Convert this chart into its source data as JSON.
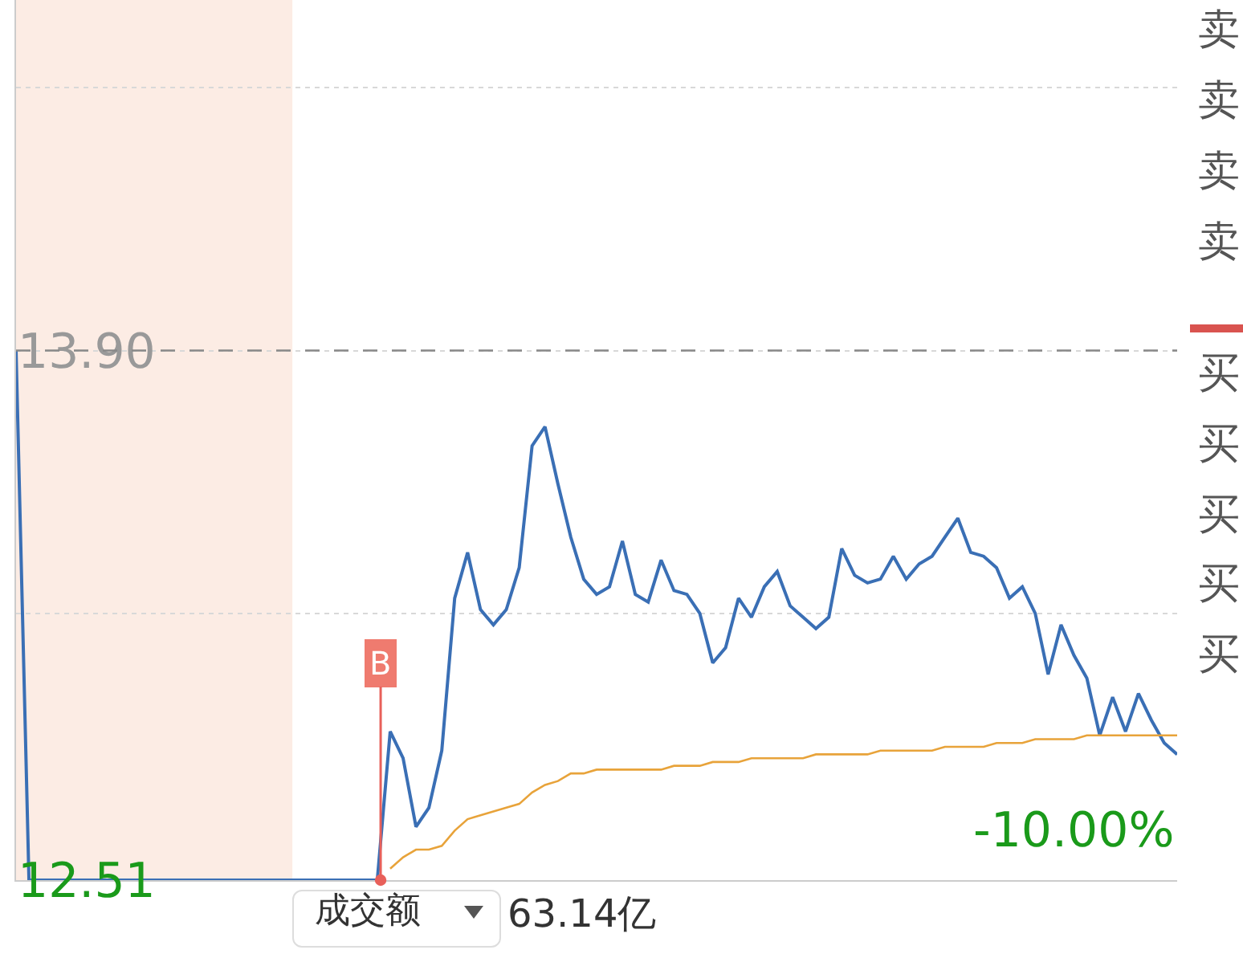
{
  "chart_data": {
    "type": "line",
    "ylim": [
      12.51,
      14.82
    ],
    "categories": [
      null,
      null,
      null,
      null,
      null,
      null,
      null,
      null,
      null,
      null,
      null,
      null,
      null,
      null,
      null,
      null,
      null,
      null,
      null,
      null,
      null,
      null,
      null,
      null,
      null,
      null,
      null,
      null,
      null,
      null,
      null,
      null,
      null,
      null,
      null,
      null,
      null,
      null,
      null,
      null,
      null,
      null,
      null,
      null,
      null,
      null,
      null,
      null,
      null,
      null,
      null,
      null,
      null,
      null,
      null,
      null,
      null,
      null,
      null,
      null,
      null,
      null,
      null,
      null,
      null,
      null,
      null,
      null,
      null,
      null,
      null,
      null,
      null,
      null,
      null,
      null,
      null,
      null,
      null,
      null,
      null,
      null,
      null,
      null,
      null,
      null,
      null,
      null,
      null,
      null,
      null
    ],
    "yticks": [
      {
        "value": 12.51,
        "label": "12.51"
      },
      {
        "value": 13.21,
        "label": null
      },
      {
        "value": 13.9,
        "label": "13.90"
      },
      {
        "value": 14.59,
        "label": null
      }
    ],
    "tick_labels": "y",
    "grid": "y",
    "marker": "none",
    "line_style": "solid",
    "series": [
      {
        "color": "#3a6fb5",
        "values": [
          13.9,
          12.51,
          12.51,
          12.51,
          12.51,
          12.51,
          12.51,
          12.51,
          12.51,
          12.51,
          12.51,
          12.51,
          12.51,
          12.51,
          12.51,
          12.51,
          12.51,
          12.51,
          12.51,
          12.51,
          12.51,
          12.51,
          12.51,
          12.51,
          12.51,
          12.51,
          12.51,
          12.51,
          12.51,
          12.9,
          12.83,
          12.65,
          12.7,
          12.85,
          13.25,
          13.37,
          13.22,
          13.18,
          13.22,
          13.33,
          13.65,
          13.7,
          13.55,
          13.41,
          13.3,
          13.26,
          13.28,
          13.4,
          13.26,
          13.24,
          13.35,
          13.27,
          13.26,
          13.21,
          13.08,
          13.12,
          13.25,
          13.2,
          13.28,
          13.32,
          13.23,
          13.2,
          13.17,
          13.2,
          13.38,
          13.31,
          13.29,
          13.3,
          13.36,
          13.3,
          13.34,
          13.36,
          13.41,
          13.46,
          13.37,
          13.36,
          13.33,
          13.25,
          13.28,
          13.21,
          13.05,
          13.18,
          13.1,
          13.04,
          12.89,
          12.99,
          12.9,
          13.0,
          12.93,
          12.87,
          12.84
        ]
      },
      {
        "color": "#e8a33a",
        "values": [
          null,
          null,
          null,
          null,
          null,
          null,
          null,
          null,
          null,
          null,
          null,
          null,
          null,
          null,
          null,
          null,
          null,
          null,
          null,
          null,
          null,
          null,
          null,
          null,
          null,
          null,
          null,
          null,
          null,
          12.54,
          12.57,
          12.59,
          12.59,
          12.6,
          12.64,
          12.67,
          12.68,
          12.69,
          12.7,
          12.71,
          12.74,
          12.76,
          12.77,
          12.79,
          12.79,
          12.8,
          12.8,
          12.8,
          12.8,
          12.8,
          12.8,
          12.81,
          12.81,
          12.81,
          12.82,
          12.82,
          12.82,
          12.83,
          12.83,
          12.83,
          12.83,
          12.83,
          12.84,
          12.84,
          12.84,
          12.84,
          12.84,
          12.85,
          12.85,
          12.85,
          12.85,
          12.85,
          12.86,
          12.86,
          12.86,
          12.86,
          12.87,
          12.87,
          12.87,
          12.88,
          12.88,
          12.88,
          12.88,
          12.89,
          12.89,
          12.89,
          12.89,
          12.89,
          12.89,
          12.89,
          12.89
        ]
      }
    ],
    "ref_lines": [
      {
        "axis": "y",
        "value": 13.9,
        "color": "#888888",
        "line_style": "dashed"
      }
    ],
    "annotations": [
      "B",
      "-10.00%",
      "卖",
      "卖",
      "卖",
      "卖",
      "买",
      "买",
      "买",
      "买",
      "买",
      "成交额",
      "63.14亿"
    ]
  }
}
